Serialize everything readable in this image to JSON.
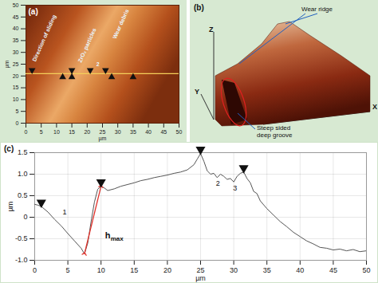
{
  "chart_data": [
    {
      "type": "image",
      "title": "(a)",
      "x_label": "µm",
      "y_label": "µm",
      "xlim": [
        0,
        50
      ],
      "xticks": [
        0,
        5,
        10,
        15,
        20,
        25,
        30,
        35,
        40,
        45,
        50
      ],
      "ylim": [
        0,
        50
      ],
      "yticks": [
        0,
        5,
        10,
        15,
        20,
        25,
        30,
        35,
        40,
        45,
        50
      ],
      "profile_line_y": 21,
      "markers": [
        {
          "x": 2,
          "y": 22.5,
          "direction": "down"
        },
        {
          "x": 15,
          "y": 22.5,
          "direction": "down"
        },
        {
          "x": 21,
          "y": 22.5,
          "direction": "down"
        },
        {
          "x": 26,
          "y": 22.5,
          "direction": "down"
        },
        {
          "x": 12,
          "y": 19.5,
          "direction": "up"
        },
        {
          "x": 15,
          "y": 19.5,
          "direction": "up"
        },
        {
          "x": 28,
          "y": 19.5,
          "direction": "up"
        },
        {
          "x": 35,
          "y": 19.5,
          "direction": "up"
        }
      ],
      "annotations": [
        {
          "text": "Direction of sliding"
        },
        {
          "text": "Wear debris"
        },
        {
          "text": "ZrO₂ particles"
        },
        {
          "text": "2"
        }
      ]
    },
    {
      "type": "surface",
      "title": "(b)",
      "axis_labels": [
        "X",
        "Y",
        "Z"
      ],
      "annotations": [
        {
          "lines": [
            "Wear ridge"
          ]
        },
        {
          "lines": [
            "Steep sided",
            "deep groove"
          ]
        }
      ]
    },
    {
      "type": "line",
      "title": "(c)",
      "x_label": "µm",
      "y_label": "µm",
      "color": "#555555",
      "grid": true,
      "x": [
        0,
        0.5,
        1,
        2,
        3,
        4,
        5,
        6,
        7,
        7.5,
        8,
        8.5,
        9,
        9.5,
        10,
        10.5,
        11,
        12,
        13,
        14,
        15,
        16,
        17,
        18,
        19,
        20,
        21,
        22,
        23,
        24,
        24.5,
        25,
        25.5,
        26,
        26.5,
        27,
        27.5,
        28,
        28.5,
        29,
        29.5,
        30,
        30.5,
        31,
        31.5,
        32,
        32.5,
        33,
        33.5,
        34,
        35,
        36,
        37,
        38,
        39,
        40,
        41,
        42,
        43,
        44,
        45,
        46,
        47,
        48,
        49,
        50
      ],
      "values": [
        0.3,
        0.28,
        0.25,
        0.12,
        -0.05,
        -0.2,
        -0.38,
        -0.55,
        -0.72,
        -0.85,
        -0.6,
        -0.1,
        0.35,
        0.65,
        0.72,
        0.68,
        0.62,
        0.66,
        0.72,
        0.76,
        0.8,
        0.85,
        0.88,
        0.92,
        0.95,
        0.98,
        1.02,
        1.05,
        1.1,
        1.22,
        1.35,
        1.48,
        1.3,
        1.08,
        1.0,
        1.02,
        0.92,
        1.0,
        0.95,
        0.88,
        0.9,
        0.82,
        0.95,
        1.02,
        1.05,
        0.9,
        0.8,
        0.6,
        0.55,
        0.38,
        0.2,
        0.05,
        -0.1,
        -0.22,
        -0.35,
        -0.45,
        -0.55,
        -0.62,
        -0.7,
        -0.72,
        -0.76,
        -0.74,
        -0.78,
        -0.75,
        -0.8,
        -0.78
      ],
      "xlim": [
        0,
        50
      ],
      "xticks": [
        0,
        5,
        10,
        15,
        20,
        25,
        30,
        35,
        40,
        45,
        50
      ],
      "ylim": [
        -1,
        1.5
      ],
      "yticks": [
        {
          "value": -1,
          "label": "-1.0"
        },
        -0.5,
        0,
        0.5,
        {
          "value": 1,
          "label": "1.0"
        },
        1.5
      ],
      "markers": [
        {
          "x": 1,
          "y": 0.25
        },
        {
          "x": 10,
          "y": 0.72
        },
        {
          "x": 25,
          "y": 1.48
        },
        {
          "x": 31.5,
          "y": 1.05
        }
      ],
      "annotations": [
        {
          "text": "1"
        },
        {
          "text": "2"
        },
        {
          "text": "3"
        }
      ],
      "hmax": {
        "text": "h",
        "subscript": "max"
      }
    }
  ]
}
